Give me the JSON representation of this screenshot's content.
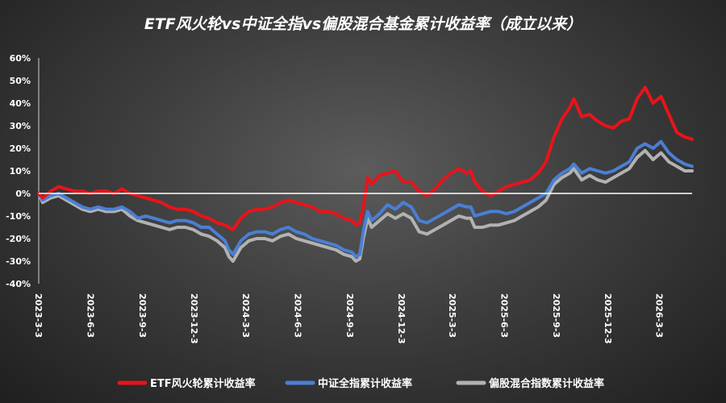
{
  "chart_data": {
    "type": "line",
    "title": "ETF风火轮vs中证全指vs偏股混合基金累计收益率（成立以来）",
    "ylim": [
      -40,
      60
    ],
    "yticks": [
      -40,
      -30,
      -20,
      -10,
      0,
      10,
      20,
      30,
      40,
      50,
      60
    ],
    "ytick_labels": [
      "-40%",
      "-30%",
      "-20%",
      "-10%",
      "0%",
      "10%",
      "20%",
      "30%",
      "40%",
      "50%",
      "60%"
    ],
    "xlim": [
      "2023-03-03",
      "2026-04-30"
    ],
    "xticks": [
      "2023-3-3",
      "2023-6-3",
      "2023-9-3",
      "2023-12-3",
      "2024-3-3",
      "2024-6-3",
      "2024-9-3",
      "2024-12-3",
      "2025-3-3",
      "2025-6-3",
      "2025-9-3",
      "2025-12-3",
      "2026-3-3"
    ],
    "grid": false,
    "zero_line": true,
    "legend_position": "bottom",
    "series": [
      {
        "name": "ETF风火轮累计收益率",
        "color": "#e8141a",
        "points": [
          [
            "2023-03-03",
            0
          ],
          [
            "2023-03-10",
            -2
          ],
          [
            "2023-03-24",
            1
          ],
          [
            "2023-04-07",
            3
          ],
          [
            "2023-04-21",
            2
          ],
          [
            "2023-05-05",
            1
          ],
          [
            "2023-05-19",
            1
          ],
          [
            "2023-06-02",
            0
          ],
          [
            "2023-06-16",
            1
          ],
          [
            "2023-06-30",
            1
          ],
          [
            "2023-07-14",
            0
          ],
          [
            "2023-07-28",
            2
          ],
          [
            "2023-08-11",
            0
          ],
          [
            "2023-08-25",
            -1
          ],
          [
            "2023-09-08",
            -2
          ],
          [
            "2023-09-22",
            -3
          ],
          [
            "2023-10-06",
            -4
          ],
          [
            "2023-10-20",
            -6
          ],
          [
            "2023-11-03",
            -7
          ],
          [
            "2023-11-17",
            -7
          ],
          [
            "2023-12-01",
            -8
          ],
          [
            "2023-12-15",
            -10
          ],
          [
            "2023-12-29",
            -11
          ],
          [
            "2024-01-12",
            -13
          ],
          [
            "2024-01-26",
            -14
          ],
          [
            "2024-02-02",
            -15
          ],
          [
            "2024-02-09",
            -16
          ],
          [
            "2024-02-23",
            -11
          ],
          [
            "2024-03-08",
            -8
          ],
          [
            "2024-03-22",
            -7
          ],
          [
            "2024-04-05",
            -7
          ],
          [
            "2024-04-19",
            -6
          ],
          [
            "2024-05-03",
            -4
          ],
          [
            "2024-05-17",
            -3
          ],
          [
            "2024-05-31",
            -4
          ],
          [
            "2024-06-14",
            -5
          ],
          [
            "2024-06-28",
            -6
          ],
          [
            "2024-07-12",
            -8
          ],
          [
            "2024-07-26",
            -8
          ],
          [
            "2024-08-09",
            -9
          ],
          [
            "2024-08-23",
            -11
          ],
          [
            "2024-09-06",
            -12
          ],
          [
            "2024-09-13",
            -14
          ],
          [
            "2024-09-20",
            -13
          ],
          [
            "2024-09-27",
            -5
          ],
          [
            "2024-10-04",
            7
          ],
          [
            "2024-10-11",
            4
          ],
          [
            "2024-10-25",
            8
          ],
          [
            "2024-11-08",
            9
          ],
          [
            "2024-11-22",
            10
          ],
          [
            "2024-12-06",
            5
          ],
          [
            "2024-12-20",
            5
          ],
          [
            "2025-01-03",
            1
          ],
          [
            "2025-01-17",
            -1
          ],
          [
            "2025-01-31",
            2
          ],
          [
            "2025-02-14",
            6
          ],
          [
            "2025-02-28",
            9
          ],
          [
            "2025-03-14",
            11
          ],
          [
            "2025-03-28",
            9
          ],
          [
            "2025-04-04",
            10
          ],
          [
            "2025-04-11",
            5
          ],
          [
            "2025-04-25",
            1
          ],
          [
            "2025-05-09",
            -1
          ],
          [
            "2025-05-23",
            1
          ],
          [
            "2025-06-06",
            3
          ],
          [
            "2025-06-20",
            4
          ],
          [
            "2025-07-04",
            5
          ],
          [
            "2025-07-18",
            6
          ],
          [
            "2025-08-01",
            9
          ],
          [
            "2025-08-15",
            14
          ],
          [
            "2025-08-29",
            25
          ],
          [
            "2025-09-12",
            33
          ],
          [
            "2025-09-26",
            38
          ],
          [
            "2025-10-03",
            42
          ],
          [
            "2025-10-17",
            34
          ],
          [
            "2025-10-31",
            35
          ],
          [
            "2025-11-14",
            32
          ],
          [
            "2025-11-28",
            30
          ],
          [
            "2025-12-12",
            29
          ],
          [
            "2025-12-26",
            32
          ],
          [
            "2026-01-09",
            33
          ],
          [
            "2026-01-23",
            42
          ],
          [
            "2026-02-06",
            47
          ],
          [
            "2026-02-20",
            40
          ],
          [
            "2026-03-06",
            43
          ],
          [
            "2026-03-20",
            35
          ],
          [
            "2026-04-03",
            27
          ],
          [
            "2026-04-17",
            25
          ],
          [
            "2026-04-30",
            24
          ]
        ]
      },
      {
        "name": "中证全指累计收益率",
        "color": "#4a7fd4",
        "points": [
          [
            "2023-03-03",
            0
          ],
          [
            "2023-03-10",
            -3
          ],
          [
            "2023-03-24",
            -1
          ],
          [
            "2023-04-07",
            0
          ],
          [
            "2023-04-21",
            -2
          ],
          [
            "2023-05-05",
            -4
          ],
          [
            "2023-05-19",
            -6
          ],
          [
            "2023-06-02",
            -7
          ],
          [
            "2023-06-16",
            -6
          ],
          [
            "2023-06-30",
            -7
          ],
          [
            "2023-07-14",
            -7
          ],
          [
            "2023-07-28",
            -6
          ],
          [
            "2023-08-11",
            -8
          ],
          [
            "2023-08-25",
            -11
          ],
          [
            "2023-09-08",
            -10
          ],
          [
            "2023-09-22",
            -11
          ],
          [
            "2023-10-06",
            -12
          ],
          [
            "2023-10-20",
            -13
          ],
          [
            "2023-11-03",
            -12
          ],
          [
            "2023-11-17",
            -12
          ],
          [
            "2023-12-01",
            -13
          ],
          [
            "2023-12-15",
            -15
          ],
          [
            "2023-12-29",
            -15
          ],
          [
            "2024-01-12",
            -18
          ],
          [
            "2024-01-26",
            -21
          ],
          [
            "2024-02-02",
            -25
          ],
          [
            "2024-02-09",
            -27
          ],
          [
            "2024-02-23",
            -21
          ],
          [
            "2024-03-08",
            -18
          ],
          [
            "2024-03-22",
            -17
          ],
          [
            "2024-04-05",
            -17
          ],
          [
            "2024-04-19",
            -18
          ],
          [
            "2024-05-03",
            -16
          ],
          [
            "2024-05-17",
            -15
          ],
          [
            "2024-05-31",
            -17
          ],
          [
            "2024-06-14",
            -18
          ],
          [
            "2024-06-28",
            -20
          ],
          [
            "2024-07-12",
            -21
          ],
          [
            "2024-07-26",
            -22
          ],
          [
            "2024-08-09",
            -23
          ],
          [
            "2024-08-23",
            -25
          ],
          [
            "2024-09-06",
            -26
          ],
          [
            "2024-09-13",
            -28
          ],
          [
            "2024-09-20",
            -27
          ],
          [
            "2024-09-27",
            -16
          ],
          [
            "2024-10-04",
            -8
          ],
          [
            "2024-10-11",
            -12
          ],
          [
            "2024-10-25",
            -9
          ],
          [
            "2024-11-08",
            -5
          ],
          [
            "2024-11-22",
            -7
          ],
          [
            "2024-12-06",
            -4
          ],
          [
            "2024-12-20",
            -6
          ],
          [
            "2025-01-03",
            -12
          ],
          [
            "2025-01-17",
            -13
          ],
          [
            "2025-01-31",
            -11
          ],
          [
            "2025-02-14",
            -9
          ],
          [
            "2025-02-28",
            -7
          ],
          [
            "2025-03-14",
            -5
          ],
          [
            "2025-03-28",
            -6
          ],
          [
            "2025-04-04",
            -6
          ],
          [
            "2025-04-11",
            -10
          ],
          [
            "2025-04-25",
            -9
          ],
          [
            "2025-05-09",
            -8
          ],
          [
            "2025-05-23",
            -8
          ],
          [
            "2025-06-06",
            -9
          ],
          [
            "2025-06-20",
            -8
          ],
          [
            "2025-07-04",
            -6
          ],
          [
            "2025-07-18",
            -4
          ],
          [
            "2025-08-01",
            -2
          ],
          [
            "2025-08-15",
            0
          ],
          [
            "2025-08-29",
            6
          ],
          [
            "2025-09-12",
            9
          ],
          [
            "2025-09-26",
            11
          ],
          [
            "2025-10-03",
            13
          ],
          [
            "2025-10-17",
            9
          ],
          [
            "2025-10-31",
            11
          ],
          [
            "2025-11-14",
            10
          ],
          [
            "2025-11-28",
            9
          ],
          [
            "2025-12-12",
            10
          ],
          [
            "2025-12-26",
            12
          ],
          [
            "2026-01-09",
            14
          ],
          [
            "2026-01-23",
            20
          ],
          [
            "2026-02-06",
            22
          ],
          [
            "2026-02-20",
            20
          ],
          [
            "2026-03-06",
            23
          ],
          [
            "2026-03-20",
            18
          ],
          [
            "2026-04-03",
            15
          ],
          [
            "2026-04-17",
            13
          ],
          [
            "2026-04-30",
            12
          ]
        ]
      },
      {
        "name": "偏股混合指数累计收益率",
        "color": "#b2b2b2",
        "points": [
          [
            "2023-03-03",
            0
          ],
          [
            "2023-03-10",
            -4
          ],
          [
            "2023-03-24",
            -2
          ],
          [
            "2023-04-07",
            -1
          ],
          [
            "2023-04-21",
            -3
          ],
          [
            "2023-05-05",
            -5
          ],
          [
            "2023-05-19",
            -7
          ],
          [
            "2023-06-02",
            -8
          ],
          [
            "2023-06-16",
            -7
          ],
          [
            "2023-06-30",
            -8
          ],
          [
            "2023-07-14",
            -8
          ],
          [
            "2023-07-28",
            -7
          ],
          [
            "2023-08-11",
            -10
          ],
          [
            "2023-08-25",
            -12
          ],
          [
            "2023-09-08",
            -13
          ],
          [
            "2023-09-22",
            -14
          ],
          [
            "2023-10-06",
            -15
          ],
          [
            "2023-10-20",
            -16
          ],
          [
            "2023-11-03",
            -15
          ],
          [
            "2023-11-17",
            -15
          ],
          [
            "2023-12-01",
            -16
          ],
          [
            "2023-12-15",
            -18
          ],
          [
            "2023-12-29",
            -19
          ],
          [
            "2024-01-12",
            -21
          ],
          [
            "2024-01-26",
            -24
          ],
          [
            "2024-02-02",
            -28
          ],
          [
            "2024-02-09",
            -30
          ],
          [
            "2024-02-23",
            -24
          ],
          [
            "2024-03-08",
            -21
          ],
          [
            "2024-03-22",
            -20
          ],
          [
            "2024-04-05",
            -20
          ],
          [
            "2024-04-19",
            -21
          ],
          [
            "2024-05-03",
            -19
          ],
          [
            "2024-05-17",
            -18
          ],
          [
            "2024-05-31",
            -20
          ],
          [
            "2024-06-14",
            -21
          ],
          [
            "2024-06-28",
            -22
          ],
          [
            "2024-07-12",
            -23
          ],
          [
            "2024-07-26",
            -24
          ],
          [
            "2024-08-09",
            -25
          ],
          [
            "2024-08-23",
            -27
          ],
          [
            "2024-09-06",
            -28
          ],
          [
            "2024-09-13",
            -30
          ],
          [
            "2024-09-20",
            -29
          ],
          [
            "2024-09-27",
            -19
          ],
          [
            "2024-10-04",
            -11
          ],
          [
            "2024-10-11",
            -15
          ],
          [
            "2024-10-25",
            -12
          ],
          [
            "2024-11-08",
            -9
          ],
          [
            "2024-11-22",
            -11
          ],
          [
            "2024-12-06",
            -9
          ],
          [
            "2024-12-20",
            -11
          ],
          [
            "2025-01-03",
            -17
          ],
          [
            "2025-01-17",
            -18
          ],
          [
            "2025-01-31",
            -16
          ],
          [
            "2025-02-14",
            -14
          ],
          [
            "2025-02-28",
            -12
          ],
          [
            "2025-03-14",
            -10
          ],
          [
            "2025-03-28",
            -11
          ],
          [
            "2025-04-04",
            -11
          ],
          [
            "2025-04-11",
            -15
          ],
          [
            "2025-04-25",
            -15
          ],
          [
            "2025-05-09",
            -14
          ],
          [
            "2025-05-23",
            -14
          ],
          [
            "2025-06-06",
            -13
          ],
          [
            "2025-06-20",
            -12
          ],
          [
            "2025-07-04",
            -10
          ],
          [
            "2025-07-18",
            -8
          ],
          [
            "2025-08-01",
            -6
          ],
          [
            "2025-08-15",
            -3
          ],
          [
            "2025-08-29",
            4
          ],
          [
            "2025-09-12",
            7
          ],
          [
            "2025-09-26",
            9
          ],
          [
            "2025-10-03",
            11
          ],
          [
            "2025-10-17",
            6
          ],
          [
            "2025-10-31",
            8
          ],
          [
            "2025-11-14",
            6
          ],
          [
            "2025-11-28",
            5
          ],
          [
            "2025-12-12",
            7
          ],
          [
            "2025-12-26",
            9
          ],
          [
            "2026-01-09",
            11
          ],
          [
            "2026-01-23",
            16
          ],
          [
            "2026-02-06",
            19
          ],
          [
            "2026-02-20",
            15
          ],
          [
            "2026-03-06",
            18
          ],
          [
            "2026-03-20",
            14
          ],
          [
            "2026-04-03",
            12
          ],
          [
            "2026-04-17",
            10
          ],
          [
            "2026-04-30",
            10
          ]
        ]
      }
    ]
  }
}
